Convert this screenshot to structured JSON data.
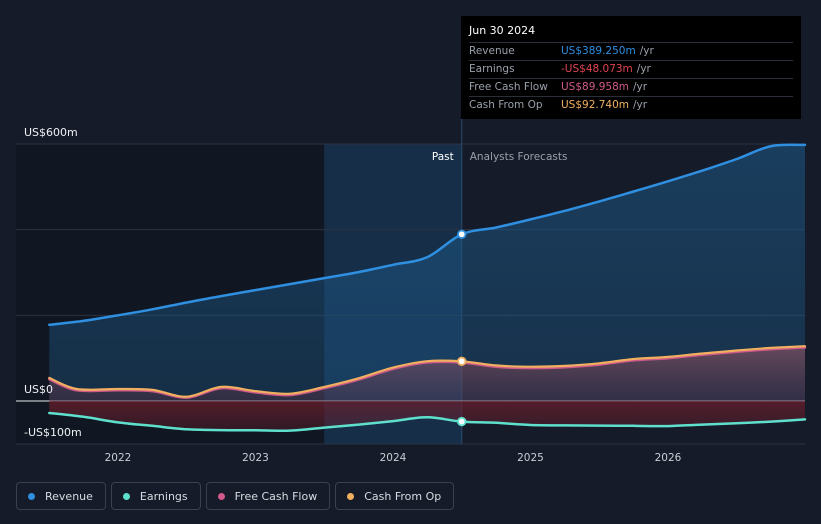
{
  "chart_data": {
    "type": "line",
    "title": "",
    "y_axis": {
      "ticks": [
        {
          "value": 600,
          "label": "US$600m"
        },
        {
          "value": 0,
          "label": "US$0"
        },
        {
          "value": -100,
          "label": "-US$100m"
        }
      ],
      "range": [
        -100,
        600
      ]
    },
    "x_axis": {
      "ticks": [
        {
          "value": 2022.0,
          "label": "2022"
        },
        {
          "value": 2023.0,
          "label": "2023"
        },
        {
          "value": 2024.0,
          "label": "2024"
        },
        {
          "value": 2025.0,
          "label": "2025"
        },
        {
          "value": 2026.0,
          "label": "2026"
        }
      ],
      "range": [
        2021.25,
        2027.0
      ]
    },
    "past_label": "Past",
    "forecast_label": "Analysts Forecasts",
    "past_start": 2023.5,
    "divider": 2024.5,
    "series": [
      {
        "name": "Revenue",
        "color": "#2f8fe0",
        "points": [
          [
            2021.5,
            178
          ],
          [
            2021.75,
            187
          ],
          [
            2022.0,
            200
          ],
          [
            2022.25,
            214
          ],
          [
            2022.5,
            230
          ],
          [
            2022.75,
            245
          ],
          [
            2023.0,
            259
          ],
          [
            2023.25,
            273
          ],
          [
            2023.5,
            287
          ],
          [
            2023.75,
            301
          ],
          [
            2024.0,
            318
          ],
          [
            2024.25,
            336
          ],
          [
            2024.5,
            389.25
          ],
          [
            2024.75,
            405
          ],
          [
            2025.0,
            424
          ],
          [
            2025.25,
            444
          ],
          [
            2025.5,
            466
          ],
          [
            2025.75,
            489
          ],
          [
            2026.0,
            513
          ],
          [
            2026.25,
            538
          ],
          [
            2026.5,
            565
          ],
          [
            2026.75,
            595
          ],
          [
            2027.0,
            598
          ]
        ]
      },
      {
        "name": "Earnings",
        "color": "#5ee0cc",
        "points": [
          [
            2021.5,
            -28
          ],
          [
            2021.75,
            -37
          ],
          [
            2022.0,
            -50
          ],
          [
            2022.25,
            -58
          ],
          [
            2022.5,
            -66
          ],
          [
            2022.75,
            -68
          ],
          [
            2023.0,
            -68.5
          ],
          [
            2023.25,
            -69
          ],
          [
            2023.5,
            -62
          ],
          [
            2023.75,
            -55
          ],
          [
            2024.0,
            -47
          ],
          [
            2024.25,
            -38
          ],
          [
            2024.5,
            -48.073
          ],
          [
            2024.75,
            -51
          ],
          [
            2025.0,
            -56
          ],
          [
            2025.25,
            -57
          ],
          [
            2025.5,
            -57.5
          ],
          [
            2025.75,
            -58
          ],
          [
            2026.0,
            -58.5
          ],
          [
            2026.25,
            -55
          ],
          [
            2026.5,
            -52
          ],
          [
            2026.75,
            -48
          ],
          [
            2027.0,
            -43
          ]
        ]
      },
      {
        "name": "Free Cash Flow",
        "color": "#d05a8a",
        "points": [
          [
            2021.5,
            51
          ],
          [
            2021.7,
            25
          ],
          [
            2022.0,
            25
          ],
          [
            2022.25,
            23
          ],
          [
            2022.5,
            8
          ],
          [
            2022.75,
            30
          ],
          [
            2023.0,
            20
          ],
          [
            2023.25,
            14
          ],
          [
            2023.5,
            30
          ],
          [
            2023.75,
            50
          ],
          [
            2024.0,
            75
          ],
          [
            2024.25,
            90
          ],
          [
            2024.5,
            89.958
          ],
          [
            2024.75,
            80
          ],
          [
            2025.0,
            77
          ],
          [
            2025.25,
            79
          ],
          [
            2025.5,
            85
          ],
          [
            2025.75,
            95
          ],
          [
            2026.0,
            100
          ],
          [
            2026.25,
            108
          ],
          [
            2026.5,
            115
          ],
          [
            2026.75,
            121
          ],
          [
            2027.0,
            125
          ]
        ]
      },
      {
        "name": "Cash From Op",
        "color": "#f0b060",
        "points": [
          [
            2021.5,
            54
          ],
          [
            2021.7,
            28
          ],
          [
            2022.0,
            28
          ],
          [
            2022.25,
            26
          ],
          [
            2022.5,
            10
          ],
          [
            2022.75,
            33
          ],
          [
            2023.0,
            23
          ],
          [
            2023.25,
            17
          ],
          [
            2023.5,
            33
          ],
          [
            2023.75,
            53
          ],
          [
            2024.0,
            78
          ],
          [
            2024.25,
            93
          ],
          [
            2024.5,
            92.74
          ],
          [
            2024.75,
            83
          ],
          [
            2025.0,
            80
          ],
          [
            2025.25,
            82
          ],
          [
            2025.5,
            88
          ],
          [
            2025.75,
            98
          ],
          [
            2026.0,
            103
          ],
          [
            2026.25,
            111
          ],
          [
            2026.5,
            118
          ],
          [
            2026.75,
            124
          ],
          [
            2027.0,
            128
          ]
        ]
      }
    ]
  },
  "tooltip": {
    "date": "Jun 30 2024",
    "rows": [
      {
        "label": "Revenue",
        "value": "US$389.250m",
        "unit": "/yr",
        "color": "#2f8fe0"
      },
      {
        "label": "Earnings",
        "value": "-US$48.073m",
        "unit": "/yr",
        "color": "#e0444f"
      },
      {
        "label": "Free Cash Flow",
        "value": "US$89.958m",
        "unit": "/yr",
        "color": "#d05a8a"
      },
      {
        "label": "Cash From Op",
        "value": "US$92.740m",
        "unit": "/yr",
        "color": "#f0b060"
      }
    ]
  },
  "legend": [
    {
      "label": "Revenue",
      "color": "#2f8fe0"
    },
    {
      "label": "Earnings",
      "color": "#5ee0cc"
    },
    {
      "label": "Free Cash Flow",
      "color": "#d05a8a"
    },
    {
      "label": "Cash From Op",
      "color": "#f0b060"
    }
  ]
}
